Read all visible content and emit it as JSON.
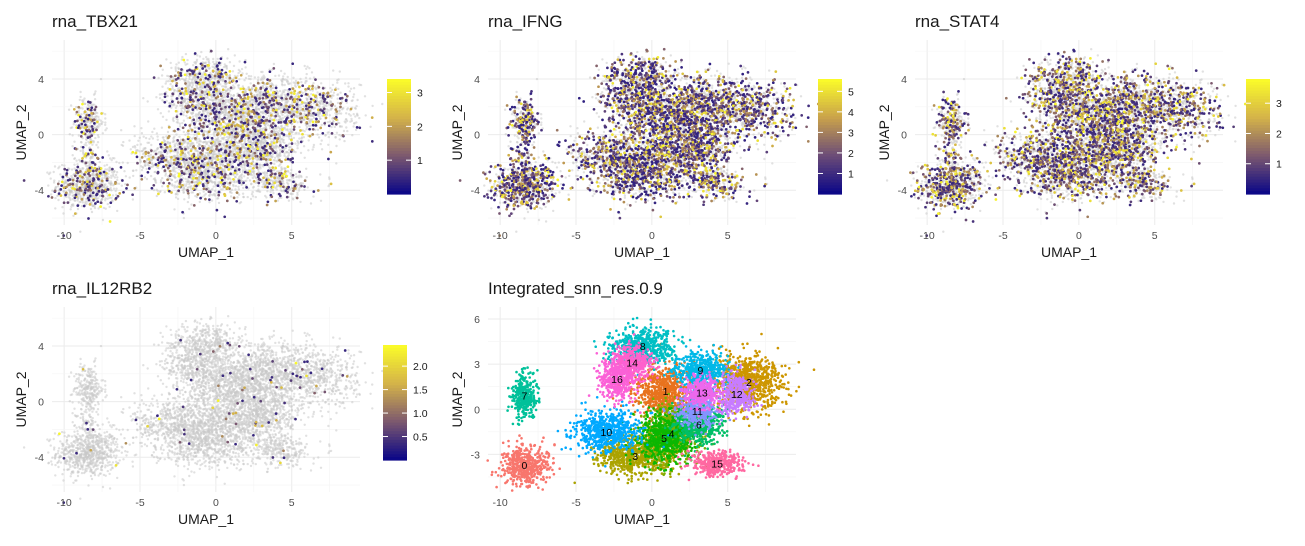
{
  "chart_data": [
    {
      "type": "scatter",
      "title": "rna_TBX21",
      "xlabel": "UMAP_1",
      "ylabel": "UMAP_2",
      "xlim": [
        -10.8,
        9.5
      ],
      "ylim": [
        -6.5,
        6.8
      ],
      "x_ticks": [
        -10,
        -5,
        0,
        5
      ],
      "y_ticks": [
        -4,
        0,
        4
      ],
      "grid": true,
      "legend": "right",
      "color_scale": {
        "type": "continuous",
        "min": 0,
        "max": 3.4,
        "ticks": [
          1,
          2,
          3
        ],
        "colors": [
          "#0d0887",
          "#7e5a6e",
          "#d4b349",
          "#fafa2a"
        ]
      },
      "background_color": "#c8c8c8",
      "positive_fraction": 0.22,
      "series": []
    },
    {
      "type": "scatter",
      "title": "rna_IFNG",
      "xlabel": "UMAP_1",
      "ylabel": "UMAP_2",
      "xlim": [
        -10.8,
        9.5
      ],
      "ylim": [
        -6.5,
        6.8
      ],
      "x_ticks": [
        -10,
        -5,
        0,
        5
      ],
      "y_ticks": [
        -4,
        0,
        4
      ],
      "grid": true,
      "legend": "right",
      "color_scale": {
        "type": "continuous",
        "min": 0,
        "max": 5.6,
        "ticks": [
          1,
          2,
          3,
          4,
          5
        ],
        "colors": [
          "#0d0887",
          "#6d4d77",
          "#c9a24b",
          "#fafa2a"
        ]
      },
      "background_color": "#c8c8c8",
      "positive_fraction": 0.55,
      "series": []
    },
    {
      "type": "scatter",
      "title": "rna_STAT4",
      "xlabel": "UMAP_1",
      "ylabel": "UMAP_2",
      "xlim": [
        -10.8,
        9.5
      ],
      "ylim": [
        -6.5,
        6.8
      ],
      "x_ticks": [
        -10,
        -5,
        0,
        5
      ],
      "y_ticks": [
        -4,
        0,
        4
      ],
      "grid": true,
      "legend": "right",
      "color_scale": {
        "type": "continuous",
        "min": 0,
        "max": 3.8,
        "ticks": [
          1,
          2,
          3
        ],
        "colors": [
          "#0d0887",
          "#7e5a6e",
          "#d4b349",
          "#fafa2a"
        ]
      },
      "background_color": "#c8c8c8",
      "positive_fraction": 0.5,
      "series": []
    },
    {
      "type": "scatter",
      "title": "rna_IL12RB2",
      "xlabel": "UMAP_1",
      "ylabel": "UMAP_2",
      "xlim": [
        -10.8,
        9.5
      ],
      "ylim": [
        -6.5,
        6.8
      ],
      "x_ticks": [
        -10,
        -5,
        0,
        5
      ],
      "y_ticks": [
        -4,
        0,
        4
      ],
      "grid": true,
      "legend": "right",
      "color_scale": {
        "type": "continuous",
        "min": 0,
        "max": 2.45,
        "ticks": [
          "0.5",
          "1.0",
          "1.5",
          "2.0"
        ],
        "tick_values": [
          0.5,
          1.0,
          1.5,
          2.0
        ],
        "colors": [
          "#0d0887",
          "#7e5a6e",
          "#d4b349",
          "#fafa2a"
        ]
      },
      "background_color": "#c8c8c8",
      "positive_fraction": 0.015,
      "series": []
    },
    {
      "type": "scatter",
      "title": "Integrated_snn_res.0.9",
      "xlabel": "UMAP_1",
      "ylabel": "UMAP_2",
      "xlim": [
        -10.8,
        9.5
      ],
      "ylim": [
        -5.5,
        6.8
      ],
      "x_ticks": [
        -10,
        -5,
        0,
        5
      ],
      "y_ticks": [
        -3,
        0,
        3,
        6
      ],
      "grid": true,
      "legend": "none",
      "series": [
        {
          "name": "0",
          "color": "#f8766d",
          "center": [
            -8.4,
            -3.7
          ],
          "spread": [
            1.1,
            0.85
          ]
        },
        {
          "name": "1",
          "color": "#e8731e",
          "center": [
            0.9,
            1.2
          ],
          "spread": [
            1.4,
            1.1
          ]
        },
        {
          "name": "2",
          "color": "#cd9600",
          "center": [
            6.4,
            1.8
          ],
          "spread": [
            1.5,
            1.2
          ]
        },
        {
          "name": "3",
          "color": "#aba300",
          "center": [
            -1.1,
            -3.1
          ],
          "spread": [
            1.6,
            0.9
          ]
        },
        {
          "name": "4",
          "color": "#7cae00",
          "center": [
            1.3,
            -1.6
          ],
          "spread": [
            1.2,
            1.2
          ]
        },
        {
          "name": "5",
          "color": "#0cb702",
          "center": [
            0.8,
            -1.9
          ],
          "spread": [
            1.2,
            1.1
          ]
        },
        {
          "name": "6",
          "color": "#00be67",
          "center": [
            3.1,
            -1.0
          ],
          "spread": [
            1.1,
            0.9
          ]
        },
        {
          "name": "7",
          "color": "#00c19a",
          "center": [
            -8.4,
            0.9
          ],
          "spread": [
            0.55,
            0.95
          ]
        },
        {
          "name": "8",
          "color": "#00bfc4",
          "center": [
            -0.6,
            4.2
          ],
          "spread": [
            1.4,
            0.8
          ]
        },
        {
          "name": "9",
          "color": "#00b8e7",
          "center": [
            3.2,
            2.6
          ],
          "spread": [
            1.2,
            0.8
          ]
        },
        {
          "name": "10",
          "color": "#00a9ff",
          "center": [
            -3.0,
            -1.5
          ],
          "spread": [
            1.4,
            0.9
          ]
        },
        {
          "name": "11",
          "color": "#8494ff",
          "center": [
            3.0,
            -0.1
          ],
          "spread": [
            0.9,
            0.7
          ]
        },
        {
          "name": "12",
          "color": "#c77cff",
          "center": [
            5.6,
            1.0
          ],
          "spread": [
            0.7,
            0.9
          ]
        },
        {
          "name": "13",
          "color": "#ed68ed",
          "center": [
            3.3,
            1.1
          ],
          "spread": [
            0.8,
            0.7
          ]
        },
        {
          "name": "14",
          "color": "#ff61cc",
          "center": [
            -1.3,
            3.1
          ],
          "spread": [
            0.9,
            0.8
          ]
        },
        {
          "name": "15",
          "color": "#ff68a1",
          "center": [
            4.3,
            -3.6
          ],
          "spread": [
            1.1,
            0.6
          ]
        },
        {
          "name": "16",
          "color": "#fb61d7",
          "center": [
            -2.3,
            2.0
          ],
          "spread": [
            0.8,
            0.9
          ]
        }
      ]
    }
  ]
}
